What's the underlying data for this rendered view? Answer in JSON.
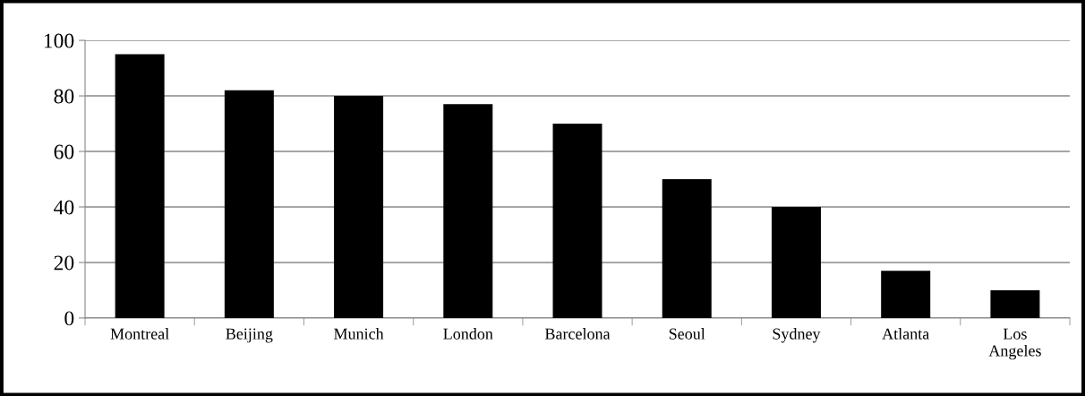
{
  "chart_data": {
    "type": "bar",
    "categories": [
      "Montreal",
      "Beijing",
      "Munich",
      "London",
      "Barcelona",
      "Seoul",
      "Sydney",
      "Atlanta",
      "Los Angeles"
    ],
    "values": [
      95,
      82,
      80,
      77,
      70,
      50,
      40,
      17,
      10
    ],
    "color": "#000000",
    "ylim": [
      0,
      100
    ],
    "yticks": [
      0,
      20,
      40,
      60,
      80,
      100
    ],
    "grid": "y",
    "legend": false
  }
}
